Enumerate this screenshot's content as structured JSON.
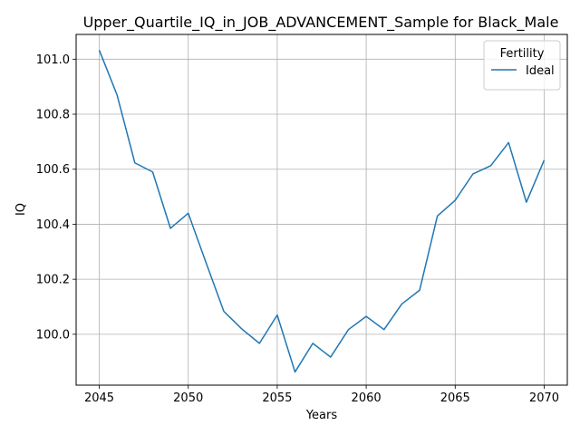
{
  "chart_data": {
    "type": "line",
    "title": "Upper_Quartile_IQ_in_JOB_ADVANCEMENT_Sample for Black_Male",
    "xlabel": "Years",
    "ylabel": "IQ",
    "xlim": [
      2043.7,
      2071.3
    ],
    "ylim": [
      99.815,
      101.09
    ],
    "x_ticks": [
      2045,
      2050,
      2055,
      2060,
      2065,
      2070
    ],
    "y_ticks": [
      100.0,
      100.2,
      100.4,
      100.6,
      100.8,
      101.0
    ],
    "y_tick_labels": [
      "100.0",
      "100.2",
      "100.4",
      "100.6",
      "100.8",
      "101.0"
    ],
    "grid": true,
    "legend": {
      "title": "Fertility",
      "placement": "top-right"
    },
    "series": [
      {
        "name": "Ideal",
        "color": "#1f77b4",
        "x": [
          2045,
          2046,
          2047,
          2048,
          2049,
          2050,
          2051,
          2052,
          2053,
          2054,
          2055,
          2056,
          2057,
          2058,
          2059,
          2060,
          2061,
          2062,
          2063,
          2064,
          2065,
          2066,
          2067,
          2068,
          2069,
          2070
        ],
        "values": [
          101.033,
          100.87,
          100.623,
          100.59,
          100.385,
          100.44,
          100.26,
          100.083,
          100.02,
          99.967,
          100.07,
          99.863,
          99.967,
          99.917,
          100.017,
          100.065,
          100.017,
          100.11,
          100.16,
          100.43,
          100.487,
          100.583,
          100.613,
          100.697,
          100.48,
          100.633
        ]
      }
    ]
  }
}
